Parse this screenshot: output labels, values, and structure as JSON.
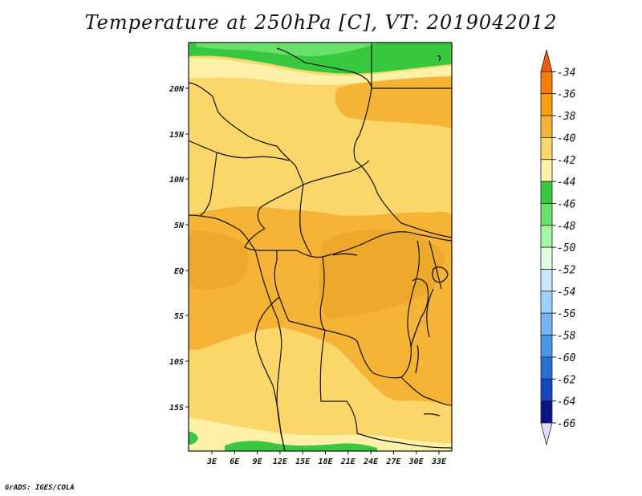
{
  "title": "Temperature at 250hPa [C], VT: 2019042012",
  "credit": "GrADS: IGES/COLA",
  "map": {
    "lat_ticks": [
      "20N",
      "15N",
      "10N",
      "5N",
      "EQ",
      "5S",
      "10S",
      "15S"
    ],
    "lon_ticks": [
      "3E",
      "6E",
      "9E",
      "12E",
      "15E",
      "18E",
      "21E",
      "24E",
      "27E",
      "30E",
      "33E"
    ]
  },
  "colorbar": {
    "labels": [
      "-34",
      "-36",
      "-38",
      "-40",
      "-42",
      "-44",
      "-46",
      "-48",
      "-50",
      "-52",
      "-54",
      "-56",
      "-58",
      "-60",
      "-62",
      "-64",
      "-66"
    ],
    "colors": [
      "#f05a0f",
      "#fa7d05",
      "#faa00a",
      "#f6b436",
      "#fbd66b",
      "#fff1a8",
      "#37c840",
      "#69e069",
      "#a4f6a4",
      "#e4ffe4",
      "#cce6ff",
      "#9ed0fa",
      "#78b4f0",
      "#4b96e6",
      "#2a6fd6",
      "#1446be",
      "#0a1482",
      "#ddddf8"
    ]
  }
}
